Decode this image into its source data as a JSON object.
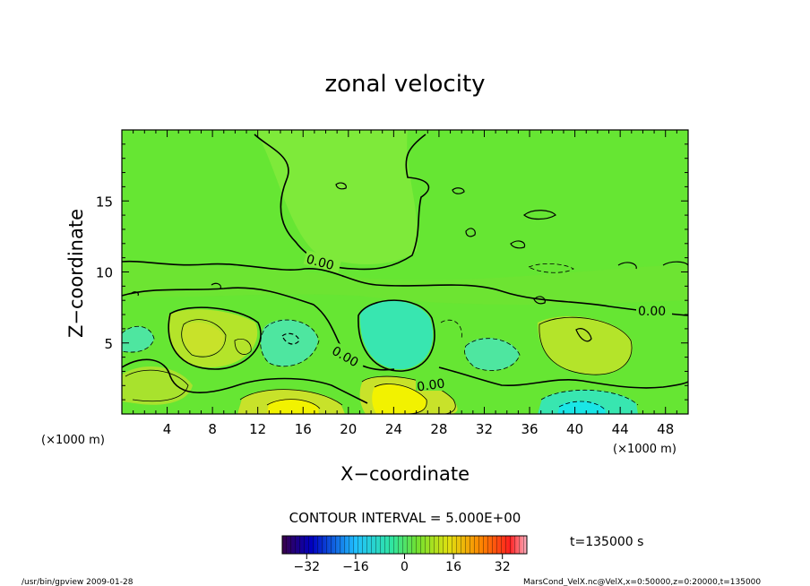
{
  "chart_data": {
    "type": "heatmap",
    "title": "zonal velocity",
    "xlabel": "X−coordinate",
    "ylabel": "Z−coordinate",
    "x_unit_left": "(×1000 m)",
    "x_unit_right": "(×1000 m)",
    "xlim": [
      0,
      50
    ],
    "ylim": [
      0,
      20
    ],
    "xticks": [
      "4",
      "8",
      "12",
      "16",
      "20",
      "24",
      "28",
      "32",
      "36",
      "40",
      "44",
      "48"
    ],
    "yticks": [
      "5",
      "10",
      "15"
    ],
    "contour_labels": [
      "0.00",
      "0.00",
      "0.00",
      "0.00"
    ],
    "contour_interval_text": "CONTOUR INTERVAL = 5.000E+00",
    "time_text": "t=135000 s",
    "colorbar": {
      "min": -40,
      "max": 40,
      "ticks": [
        "−32",
        "−16",
        "0",
        "16",
        "32"
      ]
    },
    "footer_left": "/usr/bin/gpview   2009-01-28",
    "footer_right": "MarsCond_VelX.nc@VelX,x=0:50000,z=0:20000,t=135000",
    "colors": {
      "field_base": "#66e633",
      "positive": "#d4e61a",
      "negative": "#33e6a3",
      "strong_positive": "#f2f200",
      "strong_negative": "#1ae6e6"
    }
  }
}
